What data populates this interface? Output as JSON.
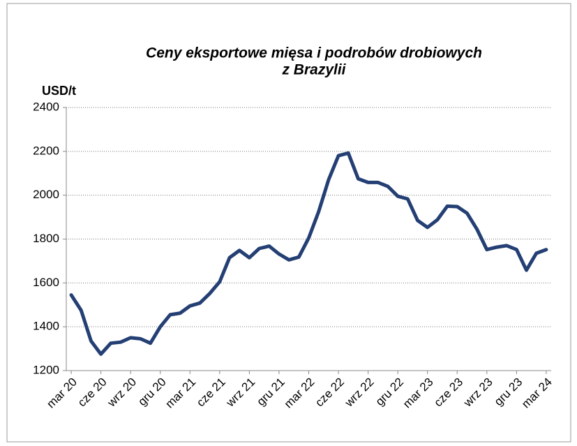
{
  "chart_data": {
    "type": "line",
    "title": "Ceny eksportowe mięsa i podrobów drobiowych",
    "subtitle": "z Brazylii",
    "y_axis_label": "USD/t",
    "categories": [
      "mar 20",
      null,
      null,
      "cze 20",
      null,
      null,
      "wrz 20",
      null,
      null,
      "gru 20",
      null,
      null,
      "mar 21",
      null,
      null,
      "cze 21",
      null,
      null,
      "wrz 21",
      null,
      null,
      "gru 21",
      null,
      null,
      "mar 22",
      null,
      null,
      "cze 22",
      null,
      null,
      "wrz 22",
      null,
      null,
      "gru 22",
      null,
      null,
      "mar 23",
      null,
      null,
      "cze 23",
      null,
      null,
      "wrz 23",
      null,
      null,
      "gru 23",
      null,
      null,
      "mar 24"
    ],
    "series": [
      {
        "name": "USD/t",
        "color": "#243f74",
        "values": [
          1545,
          1475,
          1335,
          1275,
          1325,
          1330,
          1350,
          1345,
          1325,
          1400,
          1455,
          1462,
          1495,
          1508,
          1552,
          1605,
          1715,
          1748,
          1715,
          1757,
          1768,
          1732,
          1705,
          1718,
          1805,
          1925,
          2070,
          2180,
          2192,
          2075,
          2058,
          2058,
          2040,
          1995,
          1983,
          1885,
          1853,
          1888,
          1950,
          1948,
          1918,
          1845,
          1752,
          1763,
          1770,
          1752,
          1658,
          1735,
          1752
        ]
      }
    ],
    "ylim": [
      1200,
      2400
    ],
    "yticks": [
      1200,
      1400,
      1600,
      1800,
      2000,
      2200,
      2400
    ],
    "grid": true
  }
}
